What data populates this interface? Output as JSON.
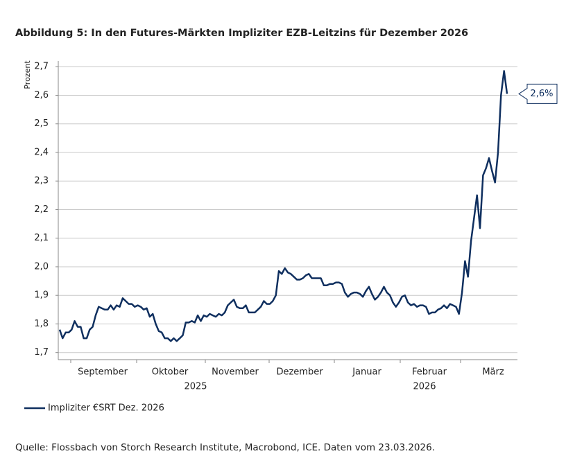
{
  "chart_data": {
    "type": "line",
    "title": "Abbildung 5: In den Futures-Märkten Impliziter EZB-Leitzins für Dezember 2026",
    "y_label": "Prozent",
    "months": [
      "September",
      "Oktober",
      "November",
      "Dezember",
      "Januar",
      "Februar",
      "März"
    ],
    "years": [
      "2025",
      "2026"
    ],
    "ylim": [
      1.675,
      2.72
    ],
    "yticks": [
      {
        "value": 1.7,
        "label": "1,7"
      },
      {
        "value": 1.8,
        "label": "1,8"
      },
      {
        "value": 1.9,
        "label": "1,9"
      },
      {
        "value": 2.0,
        "label": "2,0"
      },
      {
        "value": 2.1,
        "label": "2,1"
      },
      {
        "value": 2.2,
        "label": "2,2"
      },
      {
        "value": 2.3,
        "label": "2,3"
      },
      {
        "value": 2.4,
        "label": "2,4"
      },
      {
        "value": 2.5,
        "label": "2,5"
      },
      {
        "value": 2.6,
        "label": "2,6"
      },
      {
        "value": 2.7,
        "label": "2,7"
      }
    ],
    "grid": true,
    "series": [
      {
        "name": "Impliziter €SRT Dez. 2026",
        "color": "#0f2f5f",
        "values": [
          1.78,
          1.75,
          1.77,
          1.77,
          1.78,
          1.81,
          1.79,
          1.79,
          1.75,
          1.75,
          1.78,
          1.79,
          1.83,
          1.86,
          1.855,
          1.85,
          1.85,
          1.865,
          1.85,
          1.865,
          1.86,
          1.89,
          1.88,
          1.87,
          1.87,
          1.86,
          1.865,
          1.86,
          1.85,
          1.855,
          1.825,
          1.835,
          1.8,
          1.775,
          1.77,
          1.75,
          1.75,
          1.74,
          1.75,
          1.74,
          1.75,
          1.76,
          1.805,
          1.805,
          1.81,
          1.805,
          1.83,
          1.81,
          1.83,
          1.825,
          1.835,
          1.83,
          1.825,
          1.835,
          1.83,
          1.84,
          1.865,
          1.875,
          1.885,
          1.86,
          1.855,
          1.855,
          1.865,
          1.84,
          1.84,
          1.84,
          1.85,
          1.86,
          1.88,
          1.87,
          1.87,
          1.88,
          1.9,
          1.985,
          1.975,
          1.995,
          1.98,
          1.975,
          1.965,
          1.955,
          1.955,
          1.96,
          1.97,
          1.975,
          1.96,
          1.96,
          1.96,
          1.96,
          1.935,
          1.935,
          1.94,
          1.94,
          1.945,
          1.945,
          1.94,
          1.91,
          1.895,
          1.905,
          1.91,
          1.91,
          1.905,
          1.895,
          1.915,
          1.93,
          1.905,
          1.885,
          1.895,
          1.91,
          1.93,
          1.91,
          1.9,
          1.875,
          1.86,
          1.875,
          1.895,
          1.9,
          1.875,
          1.865,
          1.87,
          1.86,
          1.865,
          1.865,
          1.86,
          1.835,
          1.84,
          1.84,
          1.85,
          1.855,
          1.865,
          1.855,
          1.87,
          1.865,
          1.86,
          1.835,
          1.91,
          2.02,
          1.965,
          2.09,
          2.17,
          2.25,
          2.135,
          2.32,
          2.345,
          2.38,
          2.335,
          2.295,
          2.4,
          2.6,
          2.685,
          2.605
        ],
        "value_labels": {
          "last": "2,6%"
        }
      }
    ],
    "source": "Quelle: Flossbach von Storch Research Institute, Macrobond, ICE. Daten vom 23.03.2026."
  }
}
